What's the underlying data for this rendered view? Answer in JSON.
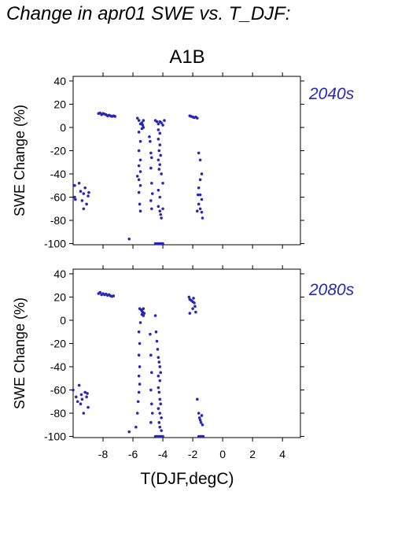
{
  "title": "Change in apr01 SWE vs. T_DJF:",
  "chart_data": {
    "type": "scatter",
    "scenario": "A1B",
    "xlabel": "T(DJF,degC)",
    "ylabel": "SWE Change (%)",
    "xlim": [
      -10,
      5.2
    ],
    "ylim": [
      -101,
      44
    ],
    "x_ticks": [
      -8,
      -6,
      -4,
      -2,
      0,
      2,
      4
    ],
    "y_ticks": [
      40,
      20,
      0,
      -20,
      -40,
      -60,
      -80,
      -100
    ],
    "point_color": "#2727b8",
    "panels": [
      {
        "label": "2040s",
        "points": [
          [
            -9.9,
            -50
          ],
          [
            -9.9,
            -60
          ],
          [
            -9.85,
            -62
          ],
          [
            -9.6,
            -48
          ],
          [
            -9.5,
            -55
          ],
          [
            -9.4,
            -63
          ],
          [
            -9.3,
            -57
          ],
          [
            -9.2,
            -52
          ],
          [
            -9.1,
            -66
          ],
          [
            -9.0,
            -59
          ],
          [
            -9.3,
            -70
          ],
          [
            -8.95,
            -56
          ],
          [
            -8.3,
            12
          ],
          [
            -8.2,
            12.5
          ],
          [
            -8.1,
            11
          ],
          [
            -8.0,
            12
          ],
          [
            -7.9,
            11.5
          ],
          [
            -7.8,
            11
          ],
          [
            -7.7,
            10
          ],
          [
            -7.6,
            10.5
          ],
          [
            -7.5,
            10
          ],
          [
            -7.4,
            9.5
          ],
          [
            -7.3,
            10
          ],
          [
            -7.2,
            9.5
          ],
          [
            -6.25,
            -96
          ],
          [
            -5.7,
            8
          ],
          [
            -5.6,
            6
          ],
          [
            -5.5,
            3
          ],
          [
            -5.4,
            4
          ],
          [
            -5.3,
            0
          ],
          [
            -5.6,
            -4
          ],
          [
            -5.5,
            -12
          ],
          [
            -5.6,
            -20
          ],
          [
            -5.5,
            -28
          ],
          [
            -5.6,
            -33
          ],
          [
            -5.5,
            -38
          ],
          [
            -5.7,
            -42
          ],
          [
            -5.6,
            -45
          ],
          [
            -5.5,
            -50
          ],
          [
            -5.6,
            -56
          ],
          [
            -5.55,
            -66
          ],
          [
            -5.5,
            -72
          ],
          [
            -5.4,
            -1
          ],
          [
            -5.35,
            2
          ],
          [
            -5.3,
            6
          ],
          [
            -4.9,
            -8
          ],
          [
            -4.85,
            -12
          ],
          [
            -4.8,
            -22
          ],
          [
            -4.75,
            -26
          ],
          [
            -4.8,
            -35
          ],
          [
            -4.75,
            -48
          ],
          [
            -4.7,
            -57
          ],
          [
            -4.8,
            -63
          ],
          [
            -4.75,
            -70
          ],
          [
            -4.5,
            6
          ],
          [
            -4.4,
            5
          ],
          [
            -4.3,
            3
          ],
          [
            -4.2,
            5
          ],
          [
            -4.1,
            4
          ],
          [
            -4.0,
            2
          ],
          [
            -3.9,
            6
          ],
          [
            -4.3,
            -2
          ],
          [
            -4.2,
            -5
          ],
          [
            -4.3,
            -10
          ],
          [
            -4.2,
            -15
          ],
          [
            -4.25,
            -20
          ],
          [
            -4.15,
            -24
          ],
          [
            -4.3,
            -28
          ],
          [
            -4.2,
            -32
          ],
          [
            -4.25,
            -36
          ],
          [
            -4.1,
            -40
          ],
          [
            -4.0,
            -48
          ],
          [
            -4.3,
            -54
          ],
          [
            -4.2,
            -60
          ],
          [
            -4.3,
            -68
          ],
          [
            -4.2,
            -72
          ],
          [
            -4.15,
            -75
          ],
          [
            -4.1,
            -78
          ],
          [
            -4.0,
            -70
          ],
          [
            -4.5,
            -100
          ],
          [
            -4.4,
            -100
          ],
          [
            -4.3,
            -100
          ],
          [
            -4.2,
            -100
          ],
          [
            -4.1,
            -100
          ],
          [
            -4.0,
            -100
          ],
          [
            -2.2,
            10
          ],
          [
            -2.1,
            9.5
          ],
          [
            -2.0,
            9
          ],
          [
            -1.9,
            8.5
          ],
          [
            -1.8,
            9
          ],
          [
            -1.7,
            8
          ],
          [
            -1.6,
            -22
          ],
          [
            -1.5,
            -28
          ],
          [
            -1.4,
            -40
          ],
          [
            -1.5,
            -45
          ],
          [
            -1.6,
            -52
          ],
          [
            -1.5,
            -58
          ],
          [
            -1.4,
            -62
          ],
          [
            -1.6,
            -66
          ],
          [
            -1.5,
            -70
          ],
          [
            -1.4,
            -73
          ],
          [
            -1.35,
            -78
          ],
          [
            -1.7,
            -72
          ],
          [
            -1.65,
            -58
          ]
        ]
      },
      {
        "label": "2080s",
        "points": [
          [
            -10.0,
            -60
          ],
          [
            -9.8,
            -66
          ],
          [
            -9.7,
            -70
          ],
          [
            -9.6,
            -56
          ],
          [
            -9.5,
            -72
          ],
          [
            -9.45,
            -64
          ],
          [
            -9.4,
            -68
          ],
          [
            -9.3,
            -80
          ],
          [
            -9.2,
            -62
          ],
          [
            -9.1,
            -66
          ],
          [
            -9.0,
            -75
          ],
          [
            -9.05,
            -63
          ],
          [
            -8.3,
            23
          ],
          [
            -8.2,
            24
          ],
          [
            -8.1,
            22
          ],
          [
            -8.0,
            23
          ],
          [
            -7.9,
            22
          ],
          [
            -7.8,
            22.5
          ],
          [
            -7.7,
            21.5
          ],
          [
            -7.6,
            22
          ],
          [
            -7.5,
            21
          ],
          [
            -7.4,
            20.5
          ],
          [
            -7.3,
            21
          ],
          [
            -6.25,
            -96
          ],
          [
            -5.8,
            -92
          ],
          [
            -5.7,
            -80
          ],
          [
            -5.65,
            -70
          ],
          [
            -5.6,
            -62
          ],
          [
            -5.55,
            -55
          ],
          [
            -5.6,
            -48
          ],
          [
            -5.55,
            -40
          ],
          [
            -5.6,
            -30
          ],
          [
            -5.55,
            -20
          ],
          [
            -5.6,
            -10
          ],
          [
            -5.5,
            -2
          ],
          [
            -5.55,
            10
          ],
          [
            -5.45,
            9
          ],
          [
            -5.4,
            8
          ],
          [
            -5.35,
            7
          ],
          [
            -5.3,
            10
          ],
          [
            -5.25,
            6
          ],
          [
            -5.3,
            4
          ],
          [
            -5.4,
            5
          ],
          [
            -4.85,
            -12
          ],
          [
            -4.8,
            -30
          ],
          [
            -4.75,
            -45
          ],
          [
            -4.8,
            -60
          ],
          [
            -4.75,
            -72
          ],
          [
            -4.7,
            -80
          ],
          [
            -4.8,
            -88
          ],
          [
            -4.5,
            4
          ],
          [
            -4.45,
            -10
          ],
          [
            -4.4,
            -18
          ],
          [
            -4.35,
            -25
          ],
          [
            -4.3,
            -32
          ],
          [
            -4.25,
            -36
          ],
          [
            -4.2,
            -40
          ],
          [
            -4.15,
            -45
          ],
          [
            -4.3,
            -48
          ],
          [
            -4.2,
            -52
          ],
          [
            -4.3,
            -58
          ],
          [
            -4.25,
            -62
          ],
          [
            -4.2,
            -68
          ],
          [
            -4.15,
            -72
          ],
          [
            -4.3,
            -76
          ],
          [
            -4.2,
            -80
          ],
          [
            -4.1,
            -84
          ],
          [
            -4.25,
            -88
          ],
          [
            -4.2,
            -92
          ],
          [
            -4.1,
            -95
          ],
          [
            -4.5,
            -100
          ],
          [
            -4.4,
            -100
          ],
          [
            -4.3,
            -100
          ],
          [
            -4.2,
            -100
          ],
          [
            -4.1,
            -100
          ],
          [
            -4.0,
            -100
          ],
          [
            -2.25,
            20
          ],
          [
            -2.2,
            18
          ],
          [
            -2.1,
            17
          ],
          [
            -2.0,
            16
          ],
          [
            -1.95,
            19
          ],
          [
            -1.9,
            15
          ],
          [
            -1.85,
            12
          ],
          [
            -2.0,
            10
          ],
          [
            -2.2,
            6
          ],
          [
            -1.8,
            7
          ],
          [
            -1.7,
            -68
          ],
          [
            -1.6,
            -80
          ],
          [
            -1.55,
            -84
          ],
          [
            -1.5,
            -86
          ],
          [
            -1.45,
            -88
          ],
          [
            -1.4,
            -82
          ],
          [
            -1.35,
            -90
          ],
          [
            -1.6,
            -100
          ],
          [
            -1.5,
            -100
          ],
          [
            -1.4,
            -100
          ],
          [
            -1.3,
            -100
          ]
        ]
      }
    ]
  }
}
